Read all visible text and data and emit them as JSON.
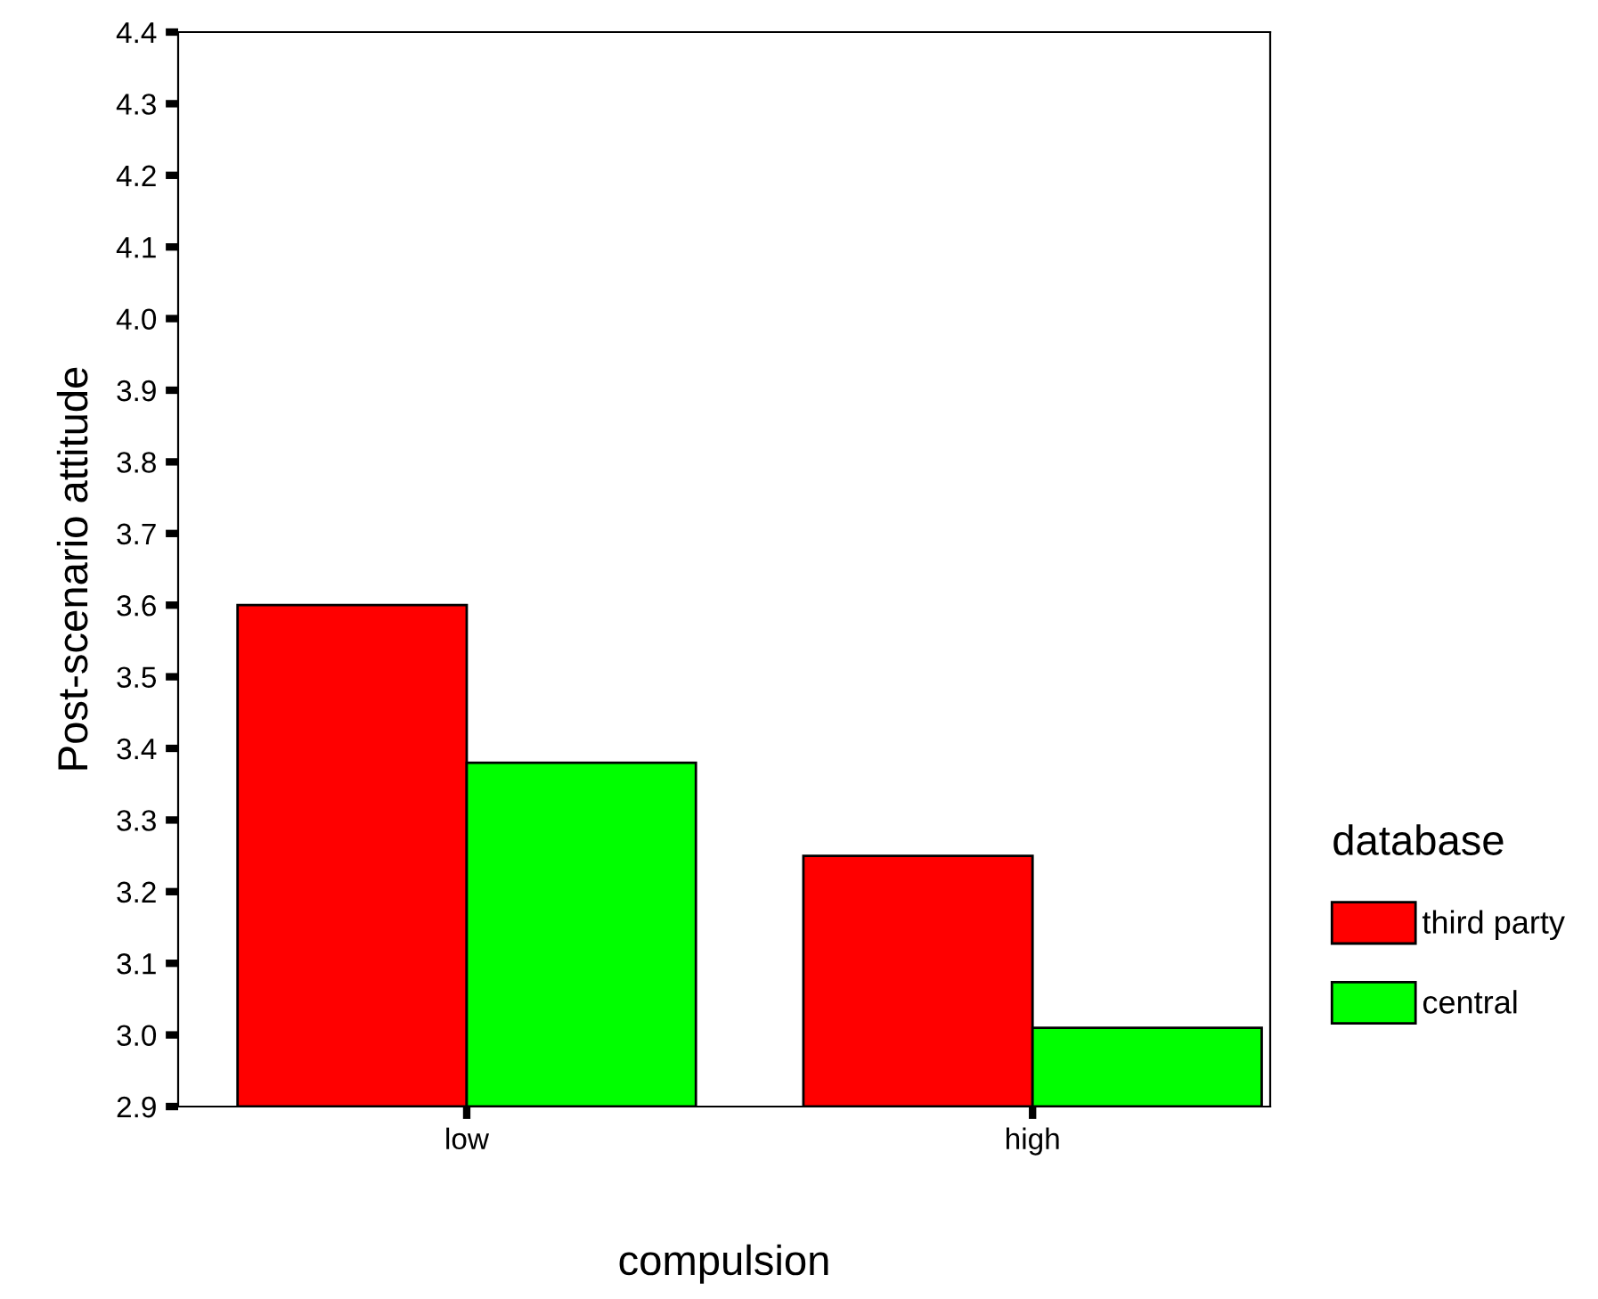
{
  "chart_data": {
    "type": "bar",
    "xlabel": "compulsion",
    "ylabel": "Post-scenario attitude",
    "legend_title": "database",
    "categories": [
      "low",
      "high"
    ],
    "series": [
      {
        "name": "third party",
        "color": "#ff0000",
        "values": [
          3.6,
          3.25
        ]
      },
      {
        "name": "central",
        "color": "#00ff00",
        "values": [
          3.38,
          3.01
        ]
      }
    ],
    "ylim": [
      2.9,
      4.4
    ],
    "yticks": [
      2.9,
      {
        "value": 3,
        "label": "3.0"
      },
      3.1,
      3.2,
      3.3,
      3.4,
      3.5,
      3.6,
      3.7,
      3.8,
      3.9,
      {
        "value": 4,
        "label": "4.0"
      },
      4.1,
      4.2,
      4.3,
      4.4
    ],
    "grid": false,
    "legend": "right"
  }
}
